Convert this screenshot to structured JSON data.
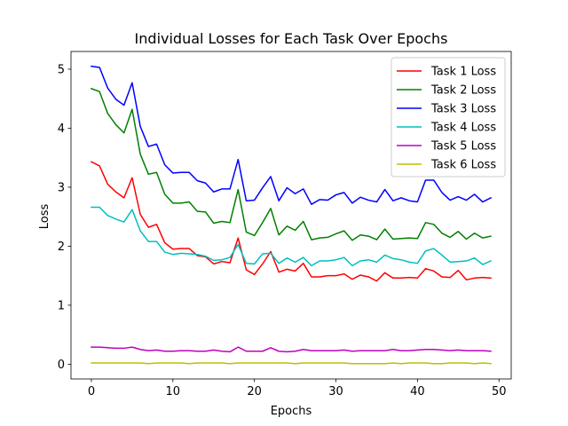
{
  "chart_data": {
    "type": "line",
    "title": "Individual Losses for Each Task Over Epochs",
    "xlabel": "Epochs",
    "ylabel": "Loss",
    "xlim": [
      -2.5,
      51.5
    ],
    "ylim": [
      -0.25,
      5.3
    ],
    "xticks": [
      0,
      10,
      20,
      30,
      40,
      50
    ],
    "yticks": [
      0,
      1,
      2,
      3,
      4,
      5
    ],
    "grid": false,
    "legend_position": "top-right",
    "x": [
      0,
      1,
      2,
      3,
      4,
      5,
      6,
      7,
      8,
      9,
      10,
      11,
      12,
      13,
      14,
      15,
      16,
      17,
      18,
      19,
      20,
      21,
      22,
      23,
      24,
      25,
      26,
      27,
      28,
      29,
      30,
      31,
      32,
      33,
      34,
      35,
      36,
      37,
      38,
      39,
      40,
      41,
      42,
      43,
      44,
      45,
      46,
      47,
      48,
      49
    ],
    "series": [
      {
        "name": "Task 1 Loss",
        "color": "#ff0000",
        "values": [
          3.43,
          3.36,
          3.05,
          2.92,
          2.82,
          3.16,
          2.54,
          2.32,
          2.37,
          2.06,
          1.95,
          1.96,
          1.96,
          1.84,
          1.82,
          1.7,
          1.74,
          1.72,
          2.14,
          1.6,
          1.52,
          1.7,
          1.91,
          1.56,
          1.61,
          1.58,
          1.71,
          1.48,
          1.48,
          1.5,
          1.5,
          1.53,
          1.44,
          1.51,
          1.48,
          1.41,
          1.55,
          1.46,
          1.46,
          1.47,
          1.46,
          1.62,
          1.58,
          1.48,
          1.47,
          1.59,
          1.43,
          1.46,
          1.47,
          1.46
        ]
      },
      {
        "name": "Task 2 Loss",
        "color": "#008000",
        "values": [
          4.67,
          4.62,
          4.25,
          4.06,
          3.92,
          4.32,
          3.56,
          3.22,
          3.25,
          2.88,
          2.73,
          2.73,
          2.75,
          2.59,
          2.58,
          2.39,
          2.42,
          2.4,
          2.96,
          2.24,
          2.18,
          2.4,
          2.64,
          2.19,
          2.34,
          2.27,
          2.42,
          2.11,
          2.14,
          2.15,
          2.21,
          2.26,
          2.1,
          2.19,
          2.17,
          2.11,
          2.29,
          2.12,
          2.13,
          2.14,
          2.13,
          2.4,
          2.37,
          2.22,
          2.15,
          2.25,
          2.12,
          2.22,
          2.14,
          2.17
        ]
      },
      {
        "name": "Task 3 Loss",
        "color": "#0000ff",
        "values": [
          5.05,
          5.03,
          4.68,
          4.49,
          4.39,
          4.77,
          4.03,
          3.69,
          3.73,
          3.38,
          3.24,
          3.25,
          3.25,
          3.11,
          3.07,
          2.92,
          2.97,
          2.97,
          3.47,
          2.77,
          2.78,
          2.99,
          3.18,
          2.77,
          2.99,
          2.89,
          2.97,
          2.71,
          2.79,
          2.78,
          2.87,
          2.91,
          2.73,
          2.83,
          2.78,
          2.75,
          2.96,
          2.77,
          2.82,
          2.77,
          2.75,
          3.12,
          3.12,
          2.91,
          2.78,
          2.84,
          2.78,
          2.88,
          2.75,
          2.82
        ]
      },
      {
        "name": "Task 4 Loss",
        "color": "#00bfbf",
        "values": [
          2.66,
          2.66,
          2.52,
          2.46,
          2.41,
          2.62,
          2.26,
          2.08,
          2.08,
          1.9,
          1.86,
          1.88,
          1.87,
          1.86,
          1.83,
          1.76,
          1.77,
          1.81,
          2.03,
          1.71,
          1.7,
          1.87,
          1.88,
          1.71,
          1.8,
          1.73,
          1.81,
          1.67,
          1.75,
          1.75,
          1.77,
          1.81,
          1.67,
          1.75,
          1.77,
          1.73,
          1.85,
          1.79,
          1.77,
          1.73,
          1.71,
          1.92,
          1.96,
          1.85,
          1.73,
          1.74,
          1.75,
          1.8,
          1.69,
          1.75
        ]
      },
      {
        "name": "Task 5 Loss",
        "color": "#bf00bf",
        "values": [
          0.29,
          0.29,
          0.28,
          0.27,
          0.27,
          0.29,
          0.25,
          0.23,
          0.24,
          0.22,
          0.22,
          0.23,
          0.23,
          0.22,
          0.22,
          0.24,
          0.22,
          0.21,
          0.29,
          0.22,
          0.22,
          0.22,
          0.28,
          0.22,
          0.21,
          0.22,
          0.25,
          0.23,
          0.23,
          0.23,
          0.23,
          0.24,
          0.22,
          0.23,
          0.23,
          0.23,
          0.23,
          0.25,
          0.23,
          0.23,
          0.24,
          0.25,
          0.25,
          0.24,
          0.23,
          0.24,
          0.23,
          0.23,
          0.23,
          0.22
        ]
      },
      {
        "name": "Task 6 Loss",
        "color": "#bfbf00",
        "values": [
          0.02,
          0.02,
          0.02,
          0.02,
          0.02,
          0.02,
          0.02,
          0.01,
          0.02,
          0.02,
          0.02,
          0.02,
          0.01,
          0.02,
          0.02,
          0.02,
          0.02,
          0.01,
          0.02,
          0.02,
          0.02,
          0.02,
          0.02,
          0.02,
          0.02,
          0.01,
          0.02,
          0.02,
          0.02,
          0.02,
          0.02,
          0.02,
          0.01,
          0.01,
          0.01,
          0.01,
          0.01,
          0.02,
          0.01,
          0.02,
          0.02,
          0.02,
          0.01,
          0.01,
          0.02,
          0.02,
          0.02,
          0.01,
          0.02,
          0.01
        ]
      }
    ]
  }
}
